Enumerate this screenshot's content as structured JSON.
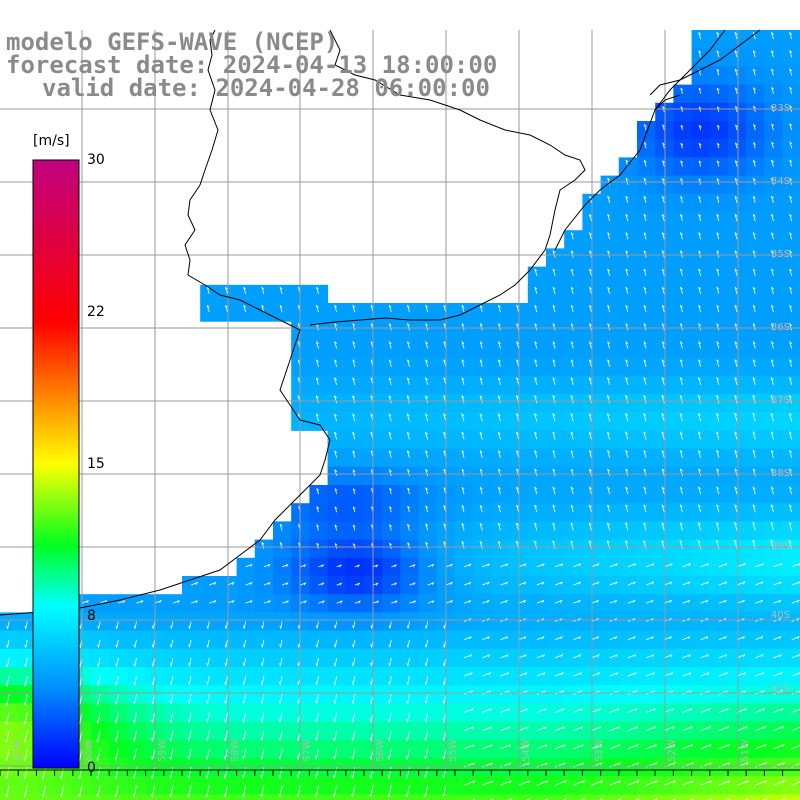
{
  "title": {
    "line1": "modelo GEFS-WAVE (NCEP)",
    "line2": "forecast date: 2024-04-13 18:00:00",
    "line3": "valid date: 2024-04-28 06:00:00"
  },
  "colorbar": {
    "unit": "[m/s]",
    "ticks": [
      "30",
      "22",
      "15",
      "8",
      "0"
    ],
    "stops": [
      {
        "v": 0,
        "color": "#0000ff"
      },
      {
        "v": 4,
        "color": "#0090ff"
      },
      {
        "v": 8,
        "color": "#00ffff"
      },
      {
        "v": 11,
        "color": "#00ff20"
      },
      {
        "v": 15,
        "color": "#ffff00"
      },
      {
        "v": 22,
        "color": "#ff0000"
      },
      {
        "v": 30,
        "color": "#c00080"
      }
    ]
  },
  "lat_labels": [
    "33S",
    "34S",
    "35S",
    "36S",
    "37S",
    "38S",
    "39S",
    "40S",
    "41S"
  ],
  "lon_labels": [
    "60W",
    "59W",
    "58W",
    "57W",
    "56W",
    "55W",
    "54W",
    "53W",
    "52W",
    "51W"
  ],
  "edge_label": "61W",
  "colors": {
    "land": "#ffffff",
    "coast": "#000000",
    "grid": "#9a9a9a",
    "arrow": "#ffffff",
    "title": "#8a8a8a"
  }
}
